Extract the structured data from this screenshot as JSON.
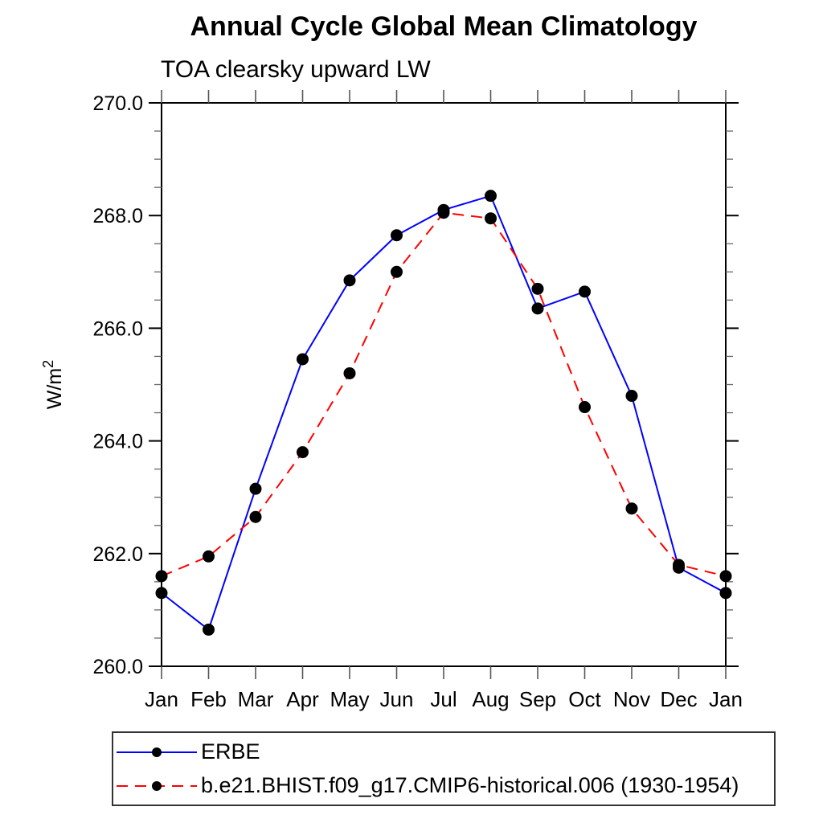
{
  "chart_data": {
    "type": "line",
    "title": "Annual Cycle Global Mean Climatology",
    "subtitle": "TOA clearsky upward LW",
    "ylabel": "W/m²",
    "categories": [
      "Jan",
      "Feb",
      "Mar",
      "Apr",
      "May",
      "Jun",
      "Jul",
      "Aug",
      "Sep",
      "Oct",
      "Nov",
      "Dec",
      "Jan"
    ],
    "ylim": [
      260.0,
      270.0
    ],
    "ytick_major": 2.0,
    "ytick_minor": 0.5,
    "ytick_labels": [
      "260.0",
      "262.0",
      "264.0",
      "266.0",
      "268.0",
      "270.0"
    ],
    "grid": "off",
    "legend_position": "bottom-boxed",
    "marker": {
      "shape": "circle",
      "color": "#000000"
    },
    "series": [
      {
        "name": "ERBE",
        "color": "#0000ff",
        "line_style": "solid",
        "values": [
          261.3,
          260.65,
          263.15,
          265.45,
          266.85,
          267.65,
          268.1,
          268.35,
          266.35,
          266.65,
          264.8,
          261.75,
          261.3
        ]
      },
      {
        "name": "b.e21.BHIST.f09_g17.CMIP6-historical.006 (1930-1954)",
        "color": "#ff0000",
        "line_style": "dashed",
        "values": [
          261.6,
          261.95,
          262.65,
          263.8,
          265.2,
          267.0,
          268.05,
          267.95,
          266.7,
          264.6,
          262.8,
          261.8,
          261.6
        ]
      }
    ]
  }
}
